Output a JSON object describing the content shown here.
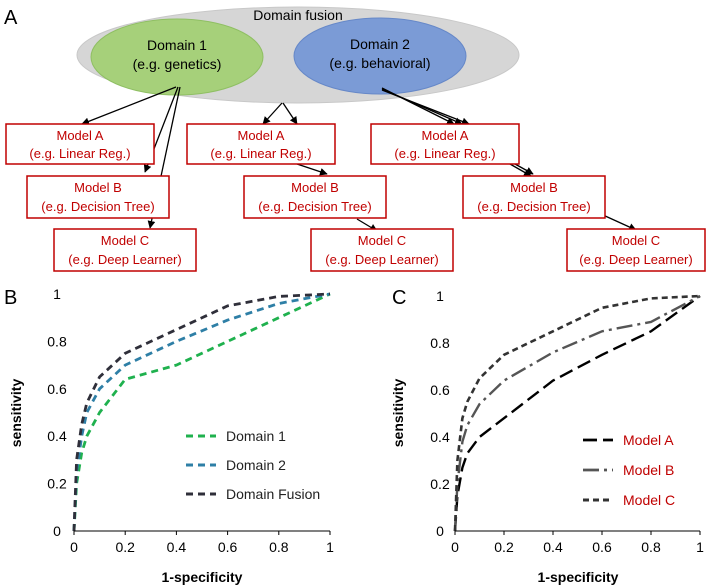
{
  "panel_labels": {
    "a": "A",
    "b": "B",
    "c": "C"
  },
  "diagram": {
    "fusion_label": "Domain fusion",
    "domain1": {
      "title": "Domain 1",
      "subtitle": "(e.g. genetics)"
    },
    "domain2": {
      "title": "Domain 2",
      "subtitle": "(e.g. behavioral)"
    },
    "models": [
      {
        "title": "Model A",
        "subtitle": "(e.g. Linear Reg.)"
      },
      {
        "title": "Model B",
        "subtitle": "(e.g. Decision Tree)"
      },
      {
        "title": "Model C",
        "subtitle": "(e.g. Deep Learner)"
      }
    ]
  },
  "colors": {
    "domain1": "#1fb14e",
    "domain2": "#2e7fa6",
    "fusion": "#2f2f3a",
    "model_a": "#000000",
    "model_b": "#555555",
    "model_c": "#333333",
    "box_border": "#c00000",
    "box_text": "#c00000",
    "ellipse_gray": "#d6d6d6",
    "ellipse_green": "#a6d07a",
    "ellipse_blue": "#7b9bd6"
  },
  "chart_data": [
    {
      "type": "line",
      "panel": "B",
      "xlabel": "1-specificity",
      "ylabel": "sensitivity",
      "xlim": [
        0,
        1
      ],
      "ylim": [
        0,
        1
      ],
      "xticks": [
        "0",
        "0.2",
        "0.4",
        "0.6",
        "0.8",
        "1"
      ],
      "yticks": [
        "0",
        "0.2",
        "0.4",
        "0.6",
        "0.8",
        "1"
      ],
      "legend_position": "bottom-right",
      "series": [
        {
          "name": "Domain 1",
          "color_key": "domain1",
          "x": [
            0,
            0.01,
            0.03,
            0.05,
            0.1,
            0.2,
            0.4,
            0.6,
            0.8,
            1.0
          ],
          "y": [
            0,
            0.2,
            0.33,
            0.4,
            0.5,
            0.64,
            0.7,
            0.8,
            0.9,
            1.0
          ]
        },
        {
          "name": "Domain 2",
          "color_key": "domain2",
          "x": [
            0,
            0.01,
            0.03,
            0.05,
            0.1,
            0.2,
            0.4,
            0.6,
            0.8,
            1.0
          ],
          "y": [
            0,
            0.25,
            0.4,
            0.5,
            0.6,
            0.7,
            0.8,
            0.89,
            0.96,
            1.0
          ]
        },
        {
          "name": "Domain Fusion",
          "color_key": "fusion",
          "x": [
            0,
            0.01,
            0.03,
            0.05,
            0.1,
            0.2,
            0.4,
            0.6,
            0.8,
            1.0
          ],
          "y": [
            0,
            0.3,
            0.45,
            0.54,
            0.65,
            0.75,
            0.85,
            0.95,
            0.99,
            1.0
          ]
        }
      ]
    },
    {
      "type": "line",
      "panel": "C",
      "xlabel": "1-specificity",
      "ylabel": "sensitivity",
      "xlim": [
        0,
        1
      ],
      "ylim": [
        0,
        1
      ],
      "xticks": [
        "0",
        "0.2",
        "0.4",
        "0.6",
        "0.8",
        "1"
      ],
      "yticks": [
        "0",
        "0.2",
        "0.4",
        "0.6",
        "0.8",
        "1"
      ],
      "legend_position": "bottom-right",
      "series": [
        {
          "name": "Model A",
          "color_key": "model_a",
          "x": [
            0,
            0.01,
            0.03,
            0.05,
            0.1,
            0.2,
            0.4,
            0.6,
            0.8,
            1.0
          ],
          "y": [
            0,
            0.15,
            0.27,
            0.33,
            0.4,
            0.48,
            0.64,
            0.75,
            0.85,
            1.0
          ]
        },
        {
          "name": "Model B",
          "color_key": "model_b",
          "x": [
            0,
            0.01,
            0.03,
            0.05,
            0.1,
            0.2,
            0.4,
            0.6,
            0.8,
            1.0
          ],
          "y": [
            0,
            0.2,
            0.38,
            0.45,
            0.54,
            0.64,
            0.76,
            0.85,
            0.89,
            1.0
          ]
        },
        {
          "name": "Model C",
          "color_key": "model_c",
          "x": [
            0,
            0.01,
            0.03,
            0.05,
            0.1,
            0.2,
            0.4,
            0.6,
            0.8,
            1.0
          ],
          "y": [
            0,
            0.3,
            0.48,
            0.55,
            0.65,
            0.75,
            0.85,
            0.95,
            0.99,
            1.0
          ]
        }
      ]
    }
  ]
}
